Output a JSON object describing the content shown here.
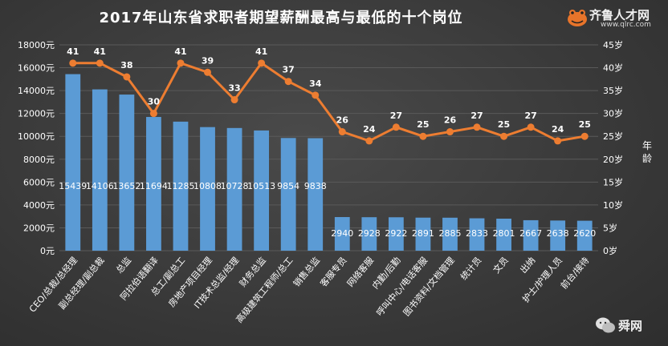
{
  "header": {
    "title": "2017年山东省求职者期望薪酬最高与最低的十个岗位"
  },
  "logo": {
    "brand": "齐鲁人才网",
    "url": "www.qlrc.com"
  },
  "watermark": {
    "label": "舜网"
  },
  "colors": {
    "bar": "#5b9bd5",
    "line": "#ed7d31",
    "text": "#ffffff",
    "grid": "#5a5a5a"
  },
  "chart_data": {
    "type": "bar",
    "title": "2017年山东省求职者期望薪酬最高与最低的十个岗位",
    "categories": [
      "CEO/总裁/总经理",
      "副总经理/副总裁",
      "总监",
      "阿拉伯语翻译",
      "总工/副总工",
      "房地产项目经理",
      "IT技术总监/经理",
      "财务总监",
      "高级建筑工程师/总工",
      "销售总监",
      "客服专员",
      "网络客服",
      "内勤/后勤",
      "呼叫中心/电话客服",
      "图书资料/文档管理",
      "统计员",
      "文员",
      "出纳",
      "护士/护理人员",
      "前台/接待"
    ],
    "series": [
      {
        "type": "bar",
        "axis": "left",
        "values": [
          15439,
          14106,
          13652,
          11694,
          11285,
          10808,
          10728,
          10513,
          9854,
          9838,
          2940,
          2928,
          2922,
          2891,
          2885,
          2833,
          2801,
          2667,
          2638,
          2620
        ]
      },
      {
        "type": "line",
        "axis": "right",
        "values": [
          41,
          41,
          38,
          30,
          41,
          39,
          33,
          41,
          37,
          34,
          26,
          24,
          27,
          25,
          26,
          27,
          25,
          27,
          24,
          25
        ]
      }
    ],
    "y_left": {
      "min": 0,
      "max": 18000,
      "step": 2000,
      "tick_suffix": "元"
    },
    "y_right": {
      "min": 0,
      "max": 45,
      "step": 5,
      "tick_suffix": "岁",
      "label": "年龄"
    },
    "grid": true,
    "legend": "none"
  }
}
